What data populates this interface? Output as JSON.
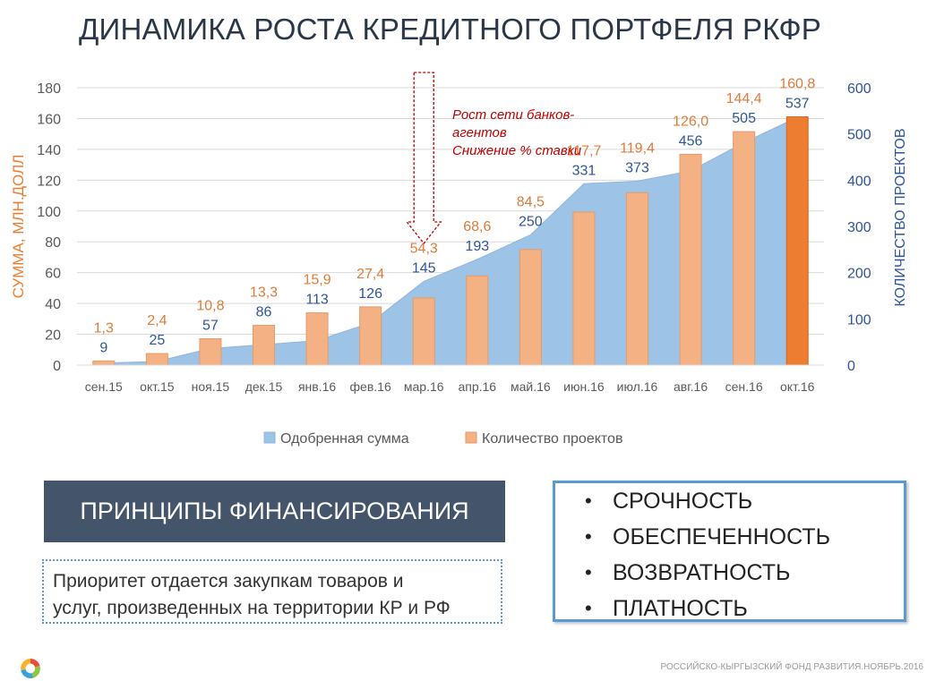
{
  "page_title": "ДИНАМИКА РОСТА КРЕДИТНОГО ПОРТФЕЛЯ РКФР",
  "chart_data": {
    "type": "bar",
    "categories": [
      "сен.15",
      "окт.15",
      "ноя.15",
      "дек.15",
      "янв.16",
      "фев.16",
      "мар.16",
      "апр.16",
      "май.16",
      "июн.16",
      "июл.16",
      "авг.16",
      "сен.16",
      "окт.16"
    ],
    "series": [
      {
        "name": "Одобренная сумма",
        "chart_type": "area",
        "axis": "left",
        "color": "#9dc3e6",
        "values": [
          1.3,
          2.4,
          10.8,
          13.3,
          15.9,
          27.4,
          54.3,
          68.6,
          84.5,
          117.7,
          119.4,
          126.0,
          144.4,
          160.8
        ],
        "labels": [
          "1,3",
          "2,4",
          "10,8",
          "13,3",
          "15,9",
          "27,4",
          "54,3",
          "68,6",
          "84,5",
          "117,7",
          "119,4",
          "126,0",
          "144,4",
          "160,8"
        ]
      },
      {
        "name": "Количество проектов",
        "chart_type": "bar",
        "axis": "right",
        "color": "#f4b183",
        "values": [
          9,
          25,
          57,
          86,
          113,
          126,
          145,
          193,
          250,
          331,
          373,
          456,
          505,
          537
        ],
        "labels": [
          "9",
          "25",
          "57",
          "86",
          "113",
          "126",
          "145",
          "193",
          "250",
          "331",
          "373",
          "456",
          "505",
          "537"
        ]
      }
    ],
    "ylabel": "СУММА, МЛН.ДОЛЛ",
    "y2label": "КОЛИЧЕСТВО ПРОЕКТОВ",
    "ylim": [
      0,
      180
    ],
    "y2lim": [
      0,
      600
    ],
    "yticks": [
      "0",
      "20",
      "40",
      "60",
      "80",
      "100",
      "120",
      "140",
      "160",
      "180"
    ],
    "y2ticks": [
      "0",
      "100",
      "200",
      "300",
      "400",
      "500",
      "600"
    ],
    "grid": true,
    "legend": "bottom",
    "highlight_last_bar_color": "#ed7d31",
    "sum_label_color": "#e07b39",
    "count_label_color": "#2f5597",
    "annotation": {
      "lines": [
        "Рост сети банков-",
        "агентов",
        "Снижение % ставки"
      ],
      "color": "#c00000",
      "at_category": "мар.16"
    }
  },
  "principles": {
    "title": "ПРИНЦИПЫ ФИНАНСИРОВАНИЯ",
    "priority_lines": [
      "Приоритет отдается закупкам товаров и",
      "услуг, произведенных на территории КР и РФ"
    ],
    "bullet_symbol": "•",
    "bullets": [
      "СРОЧНОСТЬ",
      "ОБЕСПЕЧЕННОСТЬ",
      "ВОЗВРАТНОСТЬ",
      "ПЛАТНОСТЬ"
    ]
  },
  "footer": "РОССИЙСКО-КЫРГЫЗСКИЙ ФОНД РАЗВИТИЯ.НОЯБРЬ.2016",
  "logo_icon": "fund-logo-icon"
}
